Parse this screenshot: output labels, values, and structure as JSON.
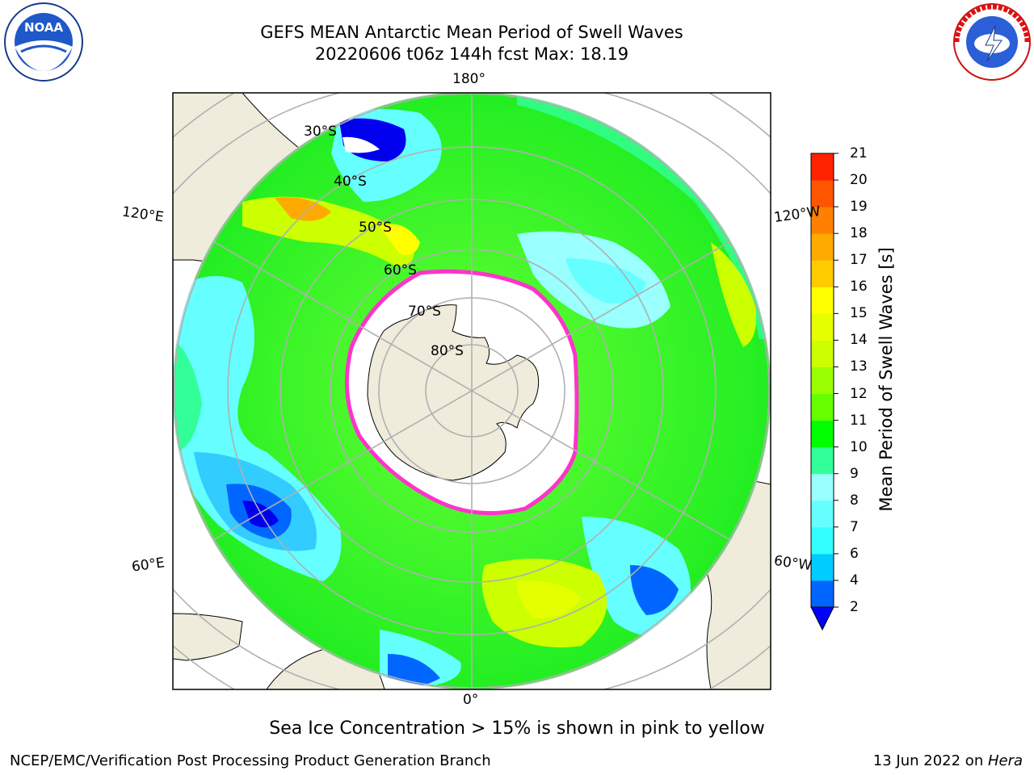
{
  "header": {
    "title_line1": "GEFS MEAN Antarctic Mean Period of Swell Waves",
    "title_line2": "20220606 t06z 144h fcst   Max: 18.19"
  },
  "logos": {
    "left": {
      "name": "NOAA",
      "icon": "noaa-logo-icon"
    },
    "right": {
      "name": "NATIONAL WEATHER SERVICE",
      "icon": "nws-logo-icon"
    }
  },
  "map": {
    "projection": "south-polar-stereographic",
    "longitude_labels": {
      "top": "180°",
      "bottom": "0°",
      "upper_left": "120°E",
      "upper_right": "120°W",
      "lower_left": "60°E",
      "lower_right": "60°W"
    },
    "latitude_labels": [
      "30°S",
      "40°S",
      "50°S",
      "60°S",
      "70°S",
      "80°S"
    ],
    "colors": {
      "land": "#efecdc",
      "ice_edge": "#ff33cc",
      "grid": "#b0b0b0"
    }
  },
  "colorbar": {
    "label": "Mean Period of Swell Waves [s]",
    "ticks": [
      "2",
      "4",
      "6",
      "7",
      "8",
      "9",
      "10",
      "11",
      "12",
      "13",
      "14",
      "15",
      "16",
      "17",
      "18",
      "19",
      "20",
      "21"
    ],
    "colors": [
      "#0066ff",
      "#00ccff",
      "#33ffff",
      "#66ffff",
      "#99ffff",
      "#33ff99",
      "#00ff00",
      "#66ff00",
      "#99ff00",
      "#ccff00",
      "#e6ff00",
      "#ffff00",
      "#ffcc00",
      "#ffaa00",
      "#ff8000",
      "#ff5500",
      "#ff2200"
    ],
    "under_color": "#0000ff"
  },
  "notes": {
    "sea_ice": "Sea Ice Concentration > 15% is shown in pink to yellow"
  },
  "footer": {
    "left": "NCEP/EMC/Verification Post Processing Product Generation Branch",
    "date": "13 Jun 2022 on ",
    "machine": "Hera"
  }
}
